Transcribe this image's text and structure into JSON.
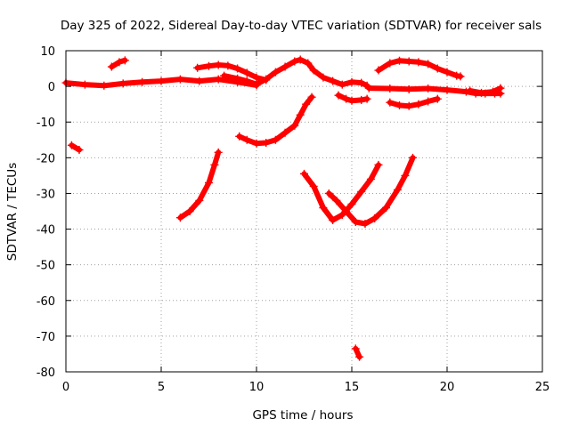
{
  "chart_data": {
    "type": "scatter",
    "title": "Day 325 of 2022, Sidereal Day-to-day VTEC variation (SDTVAR) for receiver sals",
    "xlabel": "GPS time / hours",
    "ylabel": "SDTVAR / TECUs",
    "xlim": [
      0,
      25
    ],
    "ylim": [
      -80,
      10
    ],
    "xticks": [
      0,
      5,
      10,
      15,
      20,
      25
    ],
    "yticks": [
      10,
      0,
      -10,
      -20,
      -30,
      -40,
      -50,
      -60,
      -70,
      -80
    ],
    "xtick_labels": [
      "0",
      "5",
      "10",
      "15",
      "20",
      "25"
    ],
    "ytick_labels": [
      "10",
      "0",
      "-10",
      "-20",
      "-30",
      "-40",
      "-50",
      "-60",
      "-70",
      "-80"
    ],
    "grid": true,
    "legend": "none",
    "marker": "plus",
    "color": "#ff0000",
    "series": [
      {
        "name": "arc-01",
        "points": [
          [
            0.0,
            1.0
          ],
          [
            1.0,
            0.5
          ],
          [
            2.0,
            0.2
          ],
          [
            3.0,
            0.8
          ],
          [
            4.0,
            1.2
          ],
          [
            5.0,
            1.5
          ],
          [
            6.0,
            2.0
          ],
          [
            7.0,
            1.5
          ],
          [
            8.0,
            2.0
          ],
          [
            9.0,
            1.2
          ],
          [
            10.0,
            0.3
          ]
        ]
      },
      {
        "name": "arc-02",
        "points": [
          [
            0.3,
            -16.5
          ],
          [
            0.7,
            -17.8
          ]
        ]
      },
      {
        "name": "arc-03",
        "points": [
          [
            2.4,
            5.5
          ],
          [
            2.8,
            6.8
          ],
          [
            3.1,
            7.3
          ]
        ]
      },
      {
        "name": "arc-04",
        "points": [
          [
            6.9,
            5.2
          ],
          [
            7.5,
            5.7
          ],
          [
            8.0,
            6.0
          ],
          [
            8.5,
            5.8
          ],
          [
            9.0,
            5.0
          ],
          [
            9.5,
            3.8
          ],
          [
            10.0,
            2.5
          ],
          [
            10.5,
            1.8
          ]
        ]
      },
      {
        "name": "arc-05",
        "points": [
          [
            8.3,
            3.0
          ],
          [
            9.0,
            2.2
          ],
          [
            9.5,
            1.5
          ],
          [
            10.0,
            0.6
          ],
          [
            10.5,
            2.0
          ],
          [
            11.0,
            4.0
          ],
          [
            11.5,
            5.5
          ],
          [
            12.0,
            7.0
          ],
          [
            12.3,
            7.5
          ],
          [
            12.7,
            6.5
          ],
          [
            13.0,
            4.5
          ],
          [
            13.5,
            2.5
          ],
          [
            14.0,
            1.5
          ],
          [
            14.5,
            0.5
          ],
          [
            15.0,
            1.2
          ],
          [
            15.5,
            1.0
          ],
          [
            15.8,
            0.2
          ]
        ]
      },
      {
        "name": "arc-06",
        "points": [
          [
            14.3,
            -2.5
          ],
          [
            14.7,
            -3.5
          ],
          [
            15.0,
            -4.0
          ],
          [
            15.5,
            -3.8
          ],
          [
            15.8,
            -3.5
          ]
        ]
      },
      {
        "name": "arc-07",
        "points": [
          [
            15.9,
            -0.5
          ],
          [
            17.0,
            -0.6
          ],
          [
            18.0,
            -0.8
          ],
          [
            19.0,
            -0.6
          ],
          [
            20.0,
            -1.0
          ],
          [
            21.0,
            -1.5
          ],
          [
            21.5,
            -2.0
          ],
          [
            22.0,
            -2.0
          ],
          [
            22.5,
            -2.0
          ],
          [
            22.8,
            -2.0
          ]
        ]
      },
      {
        "name": "arc-08",
        "points": [
          [
            21.2,
            -1.2
          ],
          [
            21.8,
            -1.8
          ],
          [
            22.4,
            -1.5
          ],
          [
            22.8,
            -0.5
          ]
        ]
      },
      {
        "name": "arc-09",
        "points": [
          [
            16.4,
            4.5
          ],
          [
            17.0,
            6.5
          ],
          [
            17.5,
            7.2
          ],
          [
            18.0,
            7.0
          ],
          [
            18.5,
            6.8
          ],
          [
            19.0,
            6.3
          ],
          [
            19.5,
            5.0
          ],
          [
            20.0,
            4.0
          ],
          [
            20.5,
            3.0
          ],
          [
            20.7,
            2.8
          ]
        ]
      },
      {
        "name": "arc-10",
        "points": [
          [
            17.0,
            -4.5
          ],
          [
            17.5,
            -5.3
          ],
          [
            18.0,
            -5.5
          ],
          [
            18.5,
            -5.0
          ],
          [
            19.0,
            -4.2
          ],
          [
            19.5,
            -3.5
          ]
        ]
      },
      {
        "name": "arc-11",
        "points": [
          [
            9.1,
            -14.0
          ],
          [
            9.5,
            -15.0
          ],
          [
            10.0,
            -16.0
          ],
          [
            10.5,
            -15.8
          ],
          [
            11.0,
            -15.0
          ],
          [
            11.5,
            -13.0
          ],
          [
            12.0,
            -11.0
          ],
          [
            12.3,
            -8.0
          ],
          [
            12.6,
            -5.0
          ],
          [
            12.9,
            -3.0
          ]
        ]
      },
      {
        "name": "arc-12",
        "points": [
          [
            6.0,
            -36.8
          ],
          [
            6.5,
            -35.0
          ],
          [
            7.0,
            -32.0
          ],
          [
            7.5,
            -27.0
          ],
          [
            7.8,
            -22.0
          ],
          [
            8.0,
            -18.5
          ]
        ]
      },
      {
        "name": "arc-13",
        "points": [
          [
            12.5,
            -24.5
          ],
          [
            13.0,
            -28.0
          ],
          [
            13.5,
            -34.0
          ],
          [
            14.0,
            -37.5
          ],
          [
            14.5,
            -36.0
          ],
          [
            15.0,
            -33.0
          ],
          [
            15.5,
            -29.5
          ],
          [
            16.0,
            -26.0
          ],
          [
            16.4,
            -22.0
          ]
        ]
      },
      {
        "name": "arc-14",
        "points": [
          [
            13.8,
            -30.0
          ],
          [
            14.2,
            -32.0
          ],
          [
            14.7,
            -35.0
          ],
          [
            15.2,
            -38.0
          ],
          [
            15.7,
            -38.5
          ],
          [
            16.2,
            -37.0
          ],
          [
            16.8,
            -34.0
          ],
          [
            17.4,
            -29.0
          ],
          [
            17.8,
            -25.0
          ],
          [
            18.2,
            -20.0
          ]
        ]
      },
      {
        "name": "arc-15",
        "points": [
          [
            15.2,
            -73.5
          ],
          [
            15.4,
            -75.8
          ]
        ]
      }
    ]
  }
}
